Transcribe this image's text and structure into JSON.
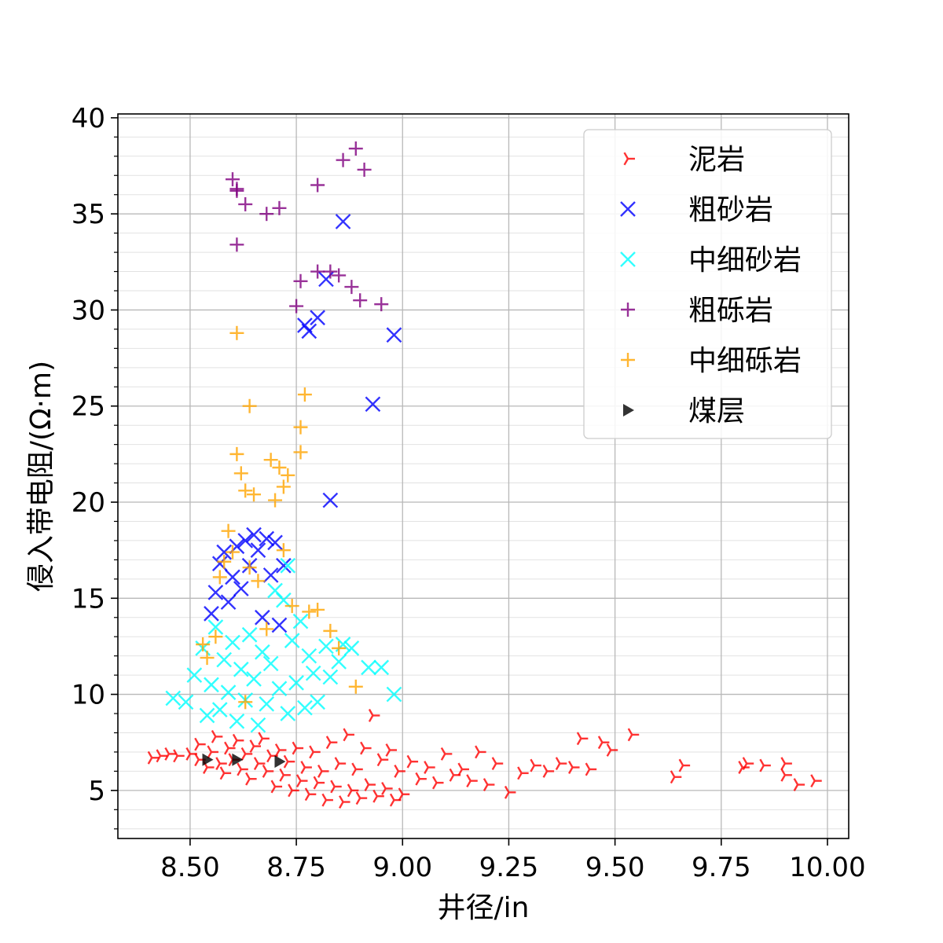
{
  "chart_data": {
    "type": "scatter",
    "xlabel": "井径/in",
    "ylabel": "侵入带电阻/(Ω·m)",
    "xlim": [
      8.33,
      10.05
    ],
    "ylim": [
      2.5,
      40.2
    ],
    "xticks": [
      8.5,
      8.75,
      9.0,
      9.25,
      9.5,
      9.75,
      10.0
    ],
    "xtick_labels": [
      "8.50",
      "8.75",
      "9.00",
      "9.25",
      "9.50",
      "9.75",
      "10.00"
    ],
    "yticks": [
      5,
      10,
      15,
      20,
      25,
      30,
      35,
      40
    ],
    "ytick_labels": [
      "5",
      "10",
      "15",
      "20",
      "25",
      "30",
      "35",
      "40"
    ],
    "grid": true,
    "minor_grid": true,
    "legend_position": "top-right",
    "series": [
      {
        "name": "泥岩",
        "marker": "tri-right",
        "color": "#ff0000",
        "points": [
          [
            8.41,
            6.7
          ],
          [
            8.43,
            6.8
          ],
          [
            8.45,
            6.9
          ],
          [
            8.47,
            6.8
          ],
          [
            8.5,
            6.9
          ],
          [
            8.52,
            6.6
          ],
          [
            8.52,
            7.4
          ],
          [
            8.54,
            6.2
          ],
          [
            8.55,
            7.0
          ],
          [
            8.56,
            7.8
          ],
          [
            8.57,
            6.4
          ],
          [
            8.58,
            5.9
          ],
          [
            8.59,
            7.2
          ],
          [
            8.6,
            6.6
          ],
          [
            8.61,
            7.6
          ],
          [
            8.62,
            6.1
          ],
          [
            8.63,
            6.9
          ],
          [
            8.64,
            5.6
          ],
          [
            8.65,
            7.3
          ],
          [
            8.66,
            6.4
          ],
          [
            8.67,
            7.7
          ],
          [
            8.68,
            6.0
          ],
          [
            8.69,
            6.8
          ],
          [
            8.7,
            5.2
          ],
          [
            8.71,
            7.1
          ],
          [
            8.72,
            5.8
          ],
          [
            8.73,
            6.5
          ],
          [
            8.74,
            5.0
          ],
          [
            8.75,
            7.2
          ],
          [
            8.76,
            5.5
          ],
          [
            8.77,
            6.2
          ],
          [
            8.78,
            4.8
          ],
          [
            8.79,
            7.0
          ],
          [
            8.8,
            5.4
          ],
          [
            8.81,
            6.0
          ],
          [
            8.82,
            4.5
          ],
          [
            8.83,
            7.5
          ],
          [
            8.84,
            5.2
          ],
          [
            8.85,
            6.4
          ],
          [
            8.86,
            4.4
          ],
          [
            8.87,
            7.9
          ],
          [
            8.88,
            5.0
          ],
          [
            8.89,
            6.1
          ],
          [
            8.9,
            4.6
          ],
          [
            8.91,
            7.2
          ],
          [
            8.92,
            5.3
          ],
          [
            8.93,
            8.9
          ],
          [
            8.94,
            4.7
          ],
          [
            8.95,
            6.6
          ],
          [
            8.96,
            5.1
          ],
          [
            8.97,
            7.1
          ],
          [
            8.98,
            4.5
          ],
          [
            8.99,
            6.0
          ],
          [
            9.0,
            4.8
          ],
          [
            9.02,
            6.5
          ],
          [
            9.04,
            5.6
          ],
          [
            9.06,
            6.2
          ],
          [
            9.08,
            5.4
          ],
          [
            9.1,
            6.9
          ],
          [
            9.12,
            5.8
          ],
          [
            9.14,
            6.1
          ],
          [
            9.16,
            5.5
          ],
          [
            9.18,
            7.0
          ],
          [
            9.2,
            5.3
          ],
          [
            9.22,
            6.4
          ],
          [
            9.25,
            4.9
          ],
          [
            9.28,
            5.9
          ],
          [
            9.31,
            6.3
          ],
          [
            9.34,
            6.0
          ],
          [
            9.37,
            6.4
          ],
          [
            9.4,
            6.2
          ],
          [
            9.42,
            7.7
          ],
          [
            9.44,
            6.1
          ],
          [
            9.47,
            7.5
          ],
          [
            9.49,
            7.1
          ],
          [
            9.54,
            7.9
          ],
          [
            9.64,
            5.7
          ],
          [
            9.66,
            6.3
          ],
          [
            9.8,
            6.2
          ],
          [
            9.81,
            6.4
          ],
          [
            9.85,
            6.3
          ],
          [
            9.9,
            6.4
          ],
          [
            9.9,
            5.8
          ],
          [
            9.93,
            5.3
          ],
          [
            9.97,
            5.5
          ]
        ]
      },
      {
        "name": "粗砂岩",
        "marker": "x",
        "color": "#0000ff",
        "points": [
          [
            8.55,
            14.2
          ],
          [
            8.56,
            15.3
          ],
          [
            8.57,
            16.8
          ],
          [
            8.58,
            17.4
          ],
          [
            8.59,
            14.8
          ],
          [
            8.6,
            16.1
          ],
          [
            8.61,
            17.7
          ],
          [
            8.62,
            15.5
          ],
          [
            8.63,
            18.0
          ],
          [
            8.64,
            16.7
          ],
          [
            8.65,
            18.3
          ],
          [
            8.66,
            17.5
          ],
          [
            8.67,
            14.0
          ],
          [
            8.68,
            18.1
          ],
          [
            8.69,
            16.2
          ],
          [
            8.7,
            17.9
          ],
          [
            8.71,
            13.6
          ],
          [
            8.72,
            16.7
          ],
          [
            8.77,
            29.2
          ],
          [
            8.78,
            28.9
          ],
          [
            8.8,
            29.6
          ],
          [
            8.82,
            31.6
          ],
          [
            8.83,
            20.1
          ],
          [
            8.86,
            34.6
          ],
          [
            8.93,
            25.1
          ],
          [
            8.98,
            28.7
          ]
        ]
      },
      {
        "name": "中细砂岩",
        "marker": "x",
        "color": "#00ffff",
        "points": [
          [
            8.46,
            9.8
          ],
          [
            8.49,
            9.6
          ],
          [
            8.51,
            11.0
          ],
          [
            8.53,
            12.4
          ],
          [
            8.54,
            8.9
          ],
          [
            8.55,
            10.5
          ],
          [
            8.56,
            13.5
          ],
          [
            8.57,
            9.2
          ],
          [
            8.58,
            11.8
          ],
          [
            8.59,
            10.1
          ],
          [
            8.6,
            12.7
          ],
          [
            8.61,
            8.6
          ],
          [
            8.62,
            11.3
          ],
          [
            8.63,
            9.7
          ],
          [
            8.64,
            13.1
          ],
          [
            8.65,
            10.8
          ],
          [
            8.66,
            8.4
          ],
          [
            8.67,
            12.2
          ],
          [
            8.68,
            9.5
          ],
          [
            8.69,
            11.6
          ],
          [
            8.7,
            15.4
          ],
          [
            8.71,
            10.3
          ],
          [
            8.72,
            14.9
          ],
          [
            8.73,
            9.0
          ],
          [
            8.74,
            12.8
          ],
          [
            8.75,
            10.6
          ],
          [
            8.76,
            13.8
          ],
          [
            8.77,
            9.3
          ],
          [
            8.78,
            12.0
          ],
          [
            8.79,
            11.1
          ],
          [
            8.8,
            9.6
          ],
          [
            8.82,
            12.5
          ],
          [
            8.83,
            10.9
          ],
          [
            8.85,
            11.7
          ],
          [
            8.86,
            12.6
          ],
          [
            8.88,
            12.4
          ],
          [
            8.92,
            11.4
          ],
          [
            8.95,
            11.4
          ],
          [
            8.98,
            10.0
          ],
          [
            8.73,
            16.7
          ]
        ]
      },
      {
        "name": "粗砾岩",
        "marker": "plus",
        "color": "#800080",
        "points": [
          [
            8.6,
            36.8
          ],
          [
            8.61,
            36.3
          ],
          [
            8.61,
            36.2
          ],
          [
            8.61,
            33.4
          ],
          [
            8.63,
            35.5
          ],
          [
            8.68,
            35.0
          ],
          [
            8.71,
            35.3
          ],
          [
            8.75,
            30.2
          ],
          [
            8.76,
            31.5
          ],
          [
            8.8,
            36.5
          ],
          [
            8.8,
            32.0
          ],
          [
            8.83,
            32.0
          ],
          [
            8.85,
            31.8
          ],
          [
            8.86,
            37.8
          ],
          [
            8.88,
            31.2
          ],
          [
            8.89,
            38.4
          ],
          [
            8.9,
            30.5
          ],
          [
            8.91,
            37.3
          ],
          [
            8.95,
            30.3
          ]
        ]
      },
      {
        "name": "中细砾岩",
        "marker": "plus",
        "color": "#ffa500",
        "points": [
          [
            8.53,
            12.6
          ],
          [
            8.54,
            11.9
          ],
          [
            8.56,
            13.0
          ],
          [
            8.57,
            16.1
          ],
          [
            8.58,
            16.9
          ],
          [
            8.59,
            18.5
          ],
          [
            8.6,
            17.4
          ],
          [
            8.61,
            28.8
          ],
          [
            8.61,
            22.5
          ],
          [
            8.62,
            21.5
          ],
          [
            8.63,
            20.6
          ],
          [
            8.64,
            25.0
          ],
          [
            8.64,
            16.6
          ],
          [
            8.65,
            20.4
          ],
          [
            8.66,
            15.9
          ],
          [
            8.68,
            13.4
          ],
          [
            8.69,
            22.2
          ],
          [
            8.7,
            20.1
          ],
          [
            8.71,
            21.8
          ],
          [
            8.72,
            20.8
          ],
          [
            8.73,
            21.4
          ],
          [
            8.74,
            14.6
          ],
          [
            8.76,
            23.9
          ],
          [
            8.76,
            22.6
          ],
          [
            8.77,
            25.6
          ],
          [
            8.78,
            14.3
          ],
          [
            8.8,
            14.4
          ],
          [
            8.83,
            13.3
          ],
          [
            8.85,
            12.4
          ],
          [
            8.89,
            10.4
          ],
          [
            8.63,
            9.6
          ],
          [
            8.72,
            17.5
          ]
        ]
      },
      {
        "name": "煤层",
        "marker": "tri-right-filled",
        "color": "#000000",
        "points": [
          [
            8.54,
            6.6
          ],
          [
            8.61,
            6.6
          ],
          [
            8.71,
            6.5
          ]
        ]
      }
    ]
  }
}
